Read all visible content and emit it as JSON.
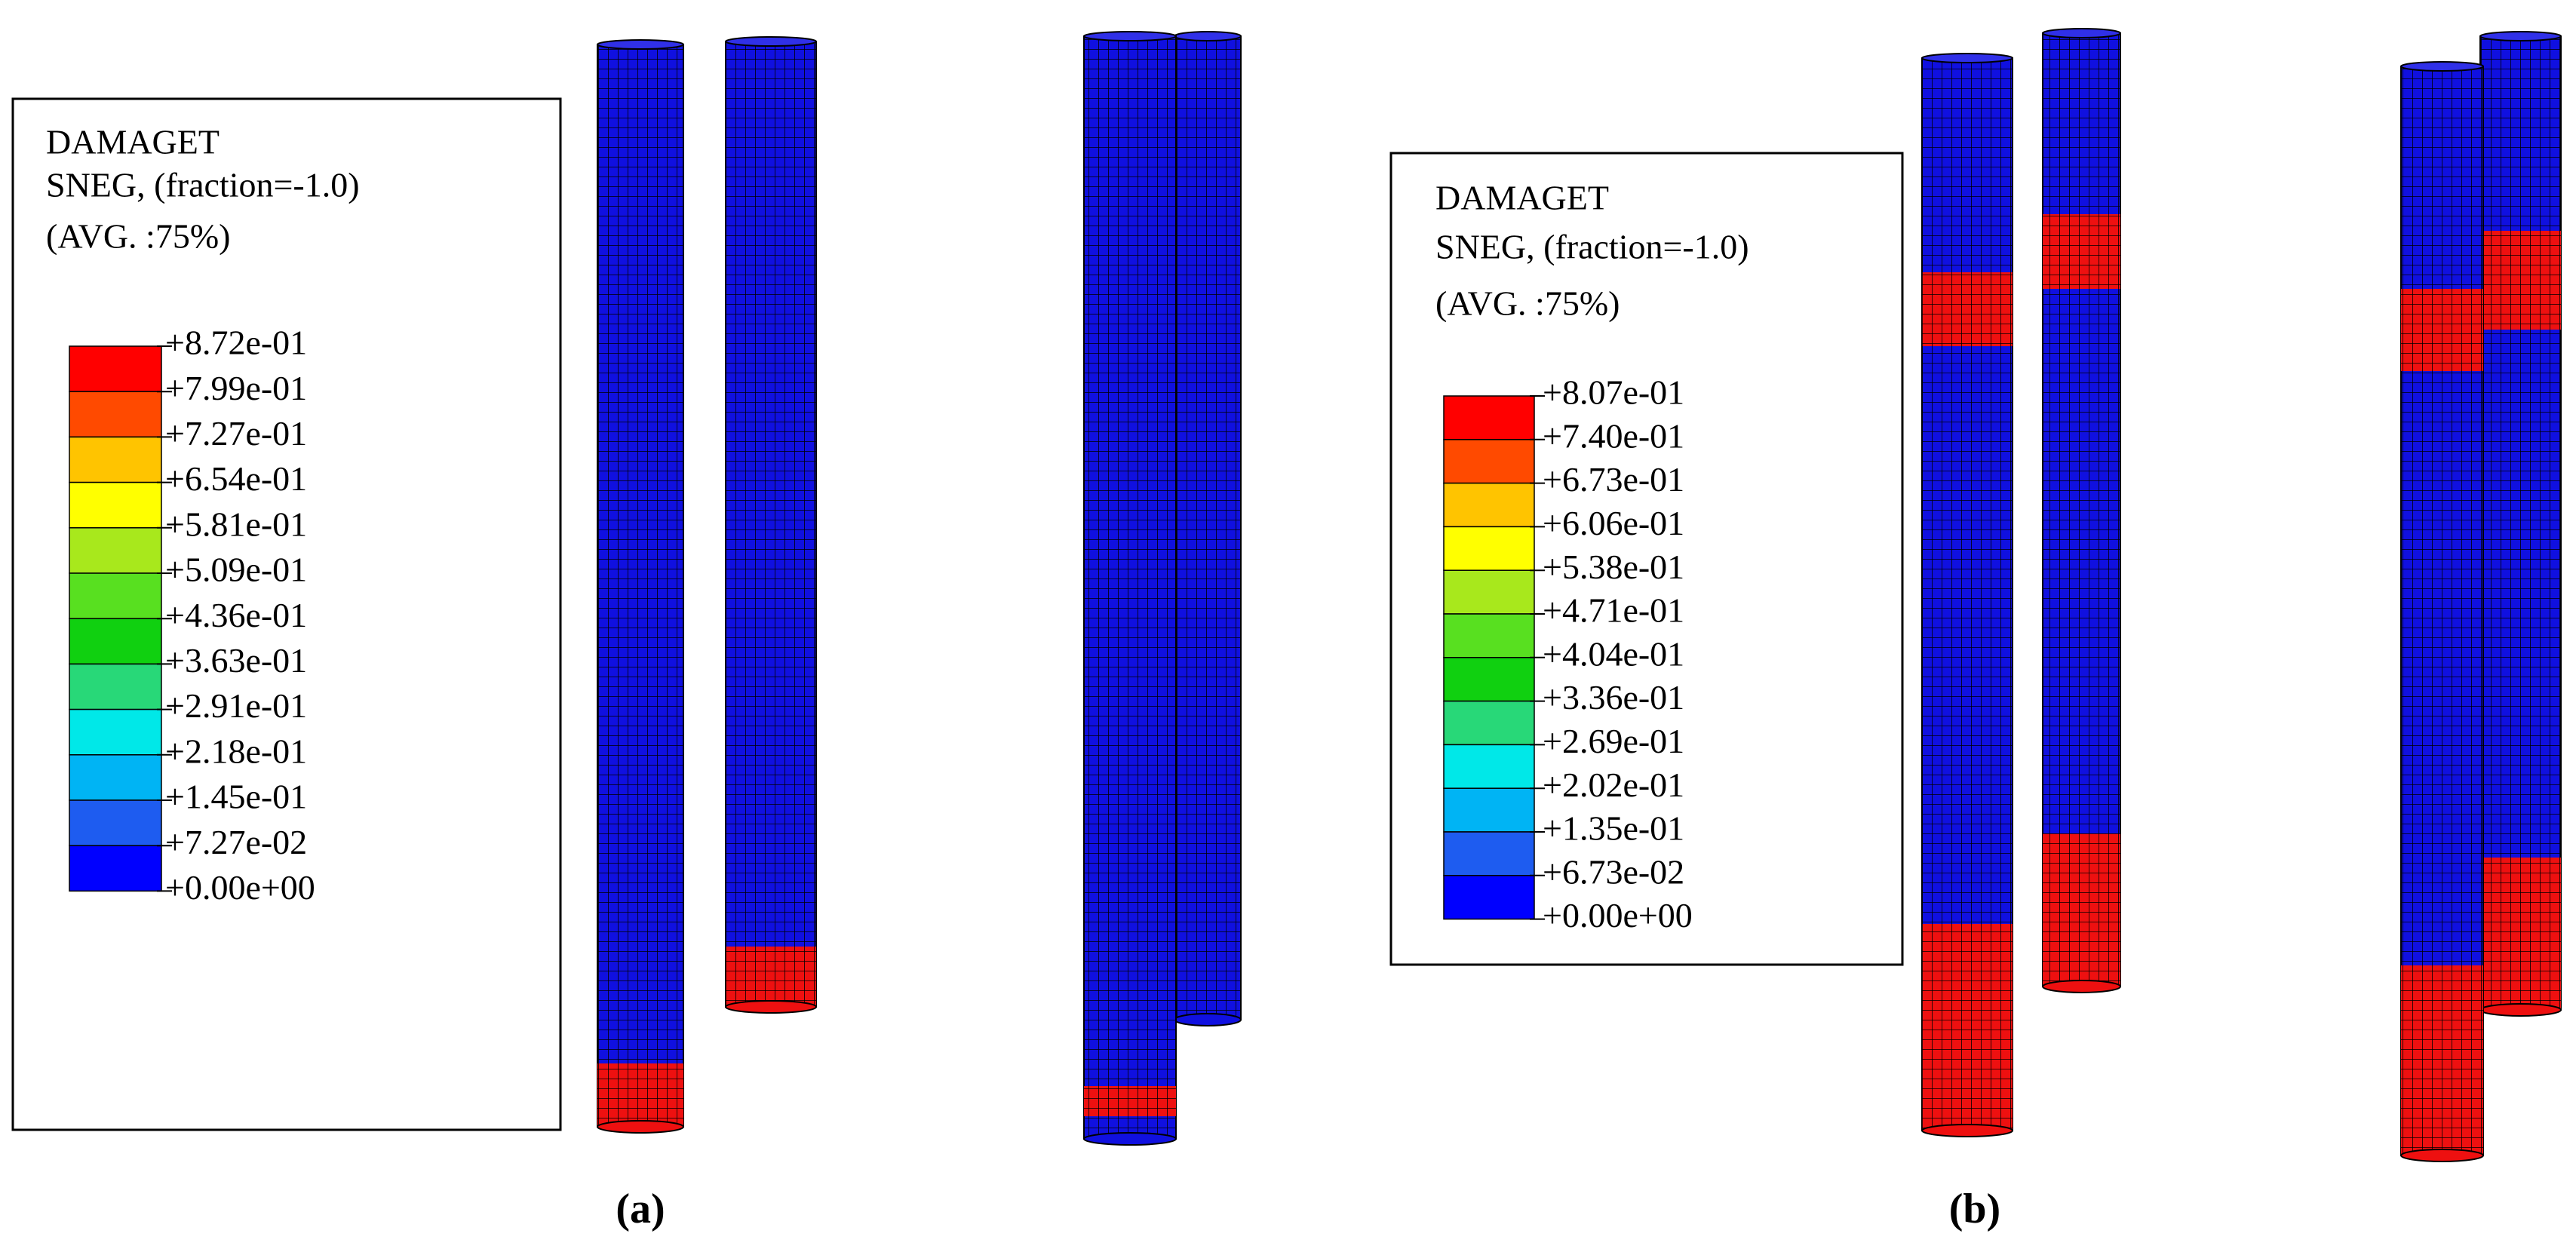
{
  "panels": [
    {
      "label": "(a)",
      "legend": {
        "title": [
          "DAMAGET",
          "SNEG, (fraction=-1.0)",
          "(AVG. :75%)"
        ],
        "levels": [
          "+8.72e-01",
          "+7.99e-01",
          "+7.27e-01",
          "+6.54e-01",
          "+5.81e-01",
          "+5.09e-01",
          "+4.36e-01",
          "+3.63e-01",
          "+2.91e-01",
          "+2.18e-01",
          "+1.45e-01",
          "+7.27e-02",
          "+0.00e+00"
        ]
      }
    },
    {
      "label": "(b)",
      "legend": {
        "title": [
          "DAMAGET",
          "SNEG, (fraction=-1.0)",
          "(AVG. :75%)"
        ],
        "levels": [
          "+8.07e-01",
          "+7.40e-01",
          "+6.73e-01",
          "+6.06e-01",
          "+5.38e-01",
          "+4.71e-01",
          "+4.04e-01",
          "+3.36e-01",
          "+2.69e-01",
          "+2.02e-01",
          "+1.35e-01",
          "+6.73e-02",
          "+0.00e+00"
        ]
      }
    }
  ],
  "legend_colors": [
    "#ff0000",
    "#ff4a00",
    "#ffc400",
    "#ffff00",
    "#a8e81c",
    "#58e020",
    "#10d010",
    "#28d878",
    "#00e8e8",
    "#00b4f4",
    "#1e5cf0",
    "#0000ff"
  ]
}
